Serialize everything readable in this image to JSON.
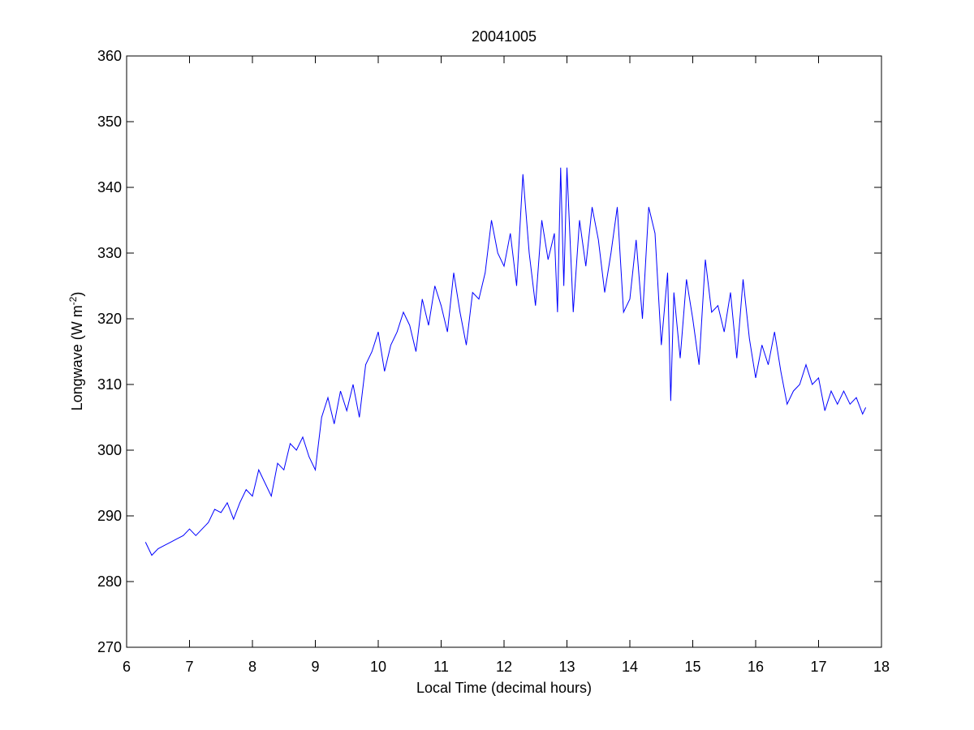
{
  "chart_data": {
    "type": "line",
    "title": "20041005",
    "xlabel": "Local Time (decimal hours)",
    "ylabel": {
      "text": "Longwave (W m",
      "superscript": "-2",
      "suffix": ")"
    },
    "xlim": [
      6,
      18
    ],
    "ylim": [
      270,
      360
    ],
    "xticks": [
      6,
      7,
      8,
      9,
      10,
      11,
      12,
      13,
      14,
      15,
      16,
      17,
      18
    ],
    "yticks": [
      270,
      280,
      290,
      300,
      310,
      320,
      330,
      340,
      350,
      360
    ],
    "grid": false,
    "x": [
      6.3,
      6.4,
      6.5,
      6.6,
      6.7,
      6.8,
      6.9,
      7.0,
      7.1,
      7.2,
      7.3,
      7.4,
      7.5,
      7.6,
      7.7,
      7.8,
      7.9,
      8.0,
      8.1,
      8.2,
      8.3,
      8.4,
      8.5,
      8.6,
      8.7,
      8.8,
      8.9,
      9.0,
      9.1,
      9.2,
      9.3,
      9.4,
      9.5,
      9.6,
      9.7,
      9.8,
      9.9,
      10.0,
      10.1,
      10.2,
      10.3,
      10.4,
      10.5,
      10.6,
      10.7,
      10.8,
      10.9,
      11.0,
      11.1,
      11.2,
      11.3,
      11.4,
      11.5,
      11.6,
      11.7,
      11.8,
      11.9,
      12.0,
      12.1,
      12.2,
      12.3,
      12.4,
      12.5,
      12.6,
      12.7,
      12.8,
      12.85,
      12.9,
      12.95,
      13.0,
      13.1,
      13.2,
      13.3,
      13.4,
      13.5,
      13.6,
      13.7,
      13.8,
      13.9,
      14.0,
      14.1,
      14.2,
      14.3,
      14.4,
      14.5,
      14.6,
      14.65,
      14.7,
      14.8,
      14.9,
      15.0,
      15.1,
      15.2,
      15.3,
      15.4,
      15.5,
      15.6,
      15.7,
      15.8,
      15.9,
      16.0,
      16.1,
      16.2,
      16.3,
      16.4,
      16.5,
      16.6,
      16.7,
      16.8,
      16.9,
      17.0,
      17.1,
      17.2,
      17.3,
      17.4,
      17.5,
      17.6,
      17.7,
      17.75
    ],
    "series": [
      {
        "color": "#0000ff",
        "values": [
          286,
          284,
          285,
          285.5,
          286,
          286.5,
          287,
          288,
          287,
          288,
          289,
          291,
          290.5,
          292,
          289.5,
          292,
          294,
          293,
          297,
          295,
          293,
          298,
          297,
          301,
          300,
          302,
          299,
          297,
          305,
          308,
          304,
          309,
          306,
          310,
          305,
          313,
          315,
          318,
          312,
          316,
          318,
          321,
          319,
          315,
          323,
          319,
          325,
          322,
          318,
          327,
          321,
          316,
          324,
          323,
          327,
          335,
          330,
          328,
          333,
          325,
          342,
          330,
          322,
          335,
          329,
          333,
          321,
          343,
          325,
          343,
          321,
          335,
          328,
          337,
          332,
          324,
          330,
          337,
          321,
          323,
          332,
          320,
          337,
          333,
          316,
          327,
          307.5,
          324,
          314,
          326,
          320,
          313,
          329,
          321,
          322,
          318,
          324,
          314,
          326,
          317,
          311,
          316,
          313,
          318,
          312,
          307,
          309,
          310,
          313,
          310,
          311,
          306,
          309,
          307,
          309,
          307,
          308,
          305.5,
          306.5
        ]
      }
    ]
  }
}
